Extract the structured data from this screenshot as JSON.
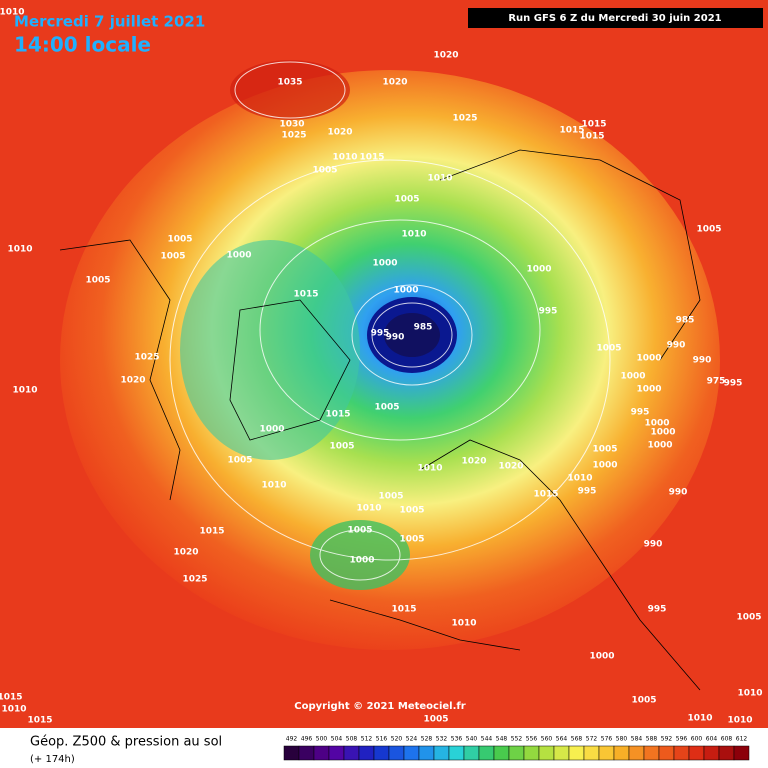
{
  "header": {
    "date": "Mercredi 7 juillet 2021",
    "time": "14:00 locale",
    "run": "Run GFS 6 Z du Mercredi 30 juin 2021"
  },
  "copyright": "Copyright © 2021 Meteociel.fr",
  "footer": {
    "title": "Géop. Z500 & pression au sol",
    "lead": "(+ 174h)"
  },
  "scale": [
    492,
    496,
    500,
    504,
    508,
    512,
    516,
    520,
    524,
    528,
    532,
    536,
    540,
    544,
    548,
    552,
    556,
    560,
    564,
    568,
    572,
    576,
    580,
    584,
    588,
    592,
    596,
    600,
    604,
    608,
    612
  ],
  "isobars": [
    "1035",
    "1020",
    "1020",
    "1030",
    "1025",
    "1020",
    "1025",
    "1015",
    "1015",
    "1015",
    "1010",
    "1015",
    "1005",
    "1010",
    "1005",
    "1005",
    "1005",
    "1010",
    "1000",
    "1005",
    "1010",
    "1000",
    "1000",
    "1005",
    "1015",
    "1000",
    "995",
    "985",
    "995",
    "985",
    "990",
    "990",
    "1005",
    "1025",
    "1000",
    "990",
    "1020",
    "1000",
    "975",
    "995",
    "1010",
    "1000",
    "995",
    "1015",
    "1005",
    "1000",
    "1000",
    "1000",
    "1000",
    "1005",
    "1005",
    "1005",
    "1010",
    "1020",
    "1020",
    "1000",
    "1010",
    "990",
    "995",
    "1010",
    "1015",
    "1005",
    "1010",
    "1005",
    "1015",
    "1005",
    "1005",
    "990",
    "1020",
    "1000",
    "1025",
    "995",
    "1015",
    "1005",
    "1010",
    "1000",
    "1005",
    "1010",
    "1015",
    "1010",
    "1005",
    "1010",
    "1015",
    "1010",
    "1010"
  ]
}
